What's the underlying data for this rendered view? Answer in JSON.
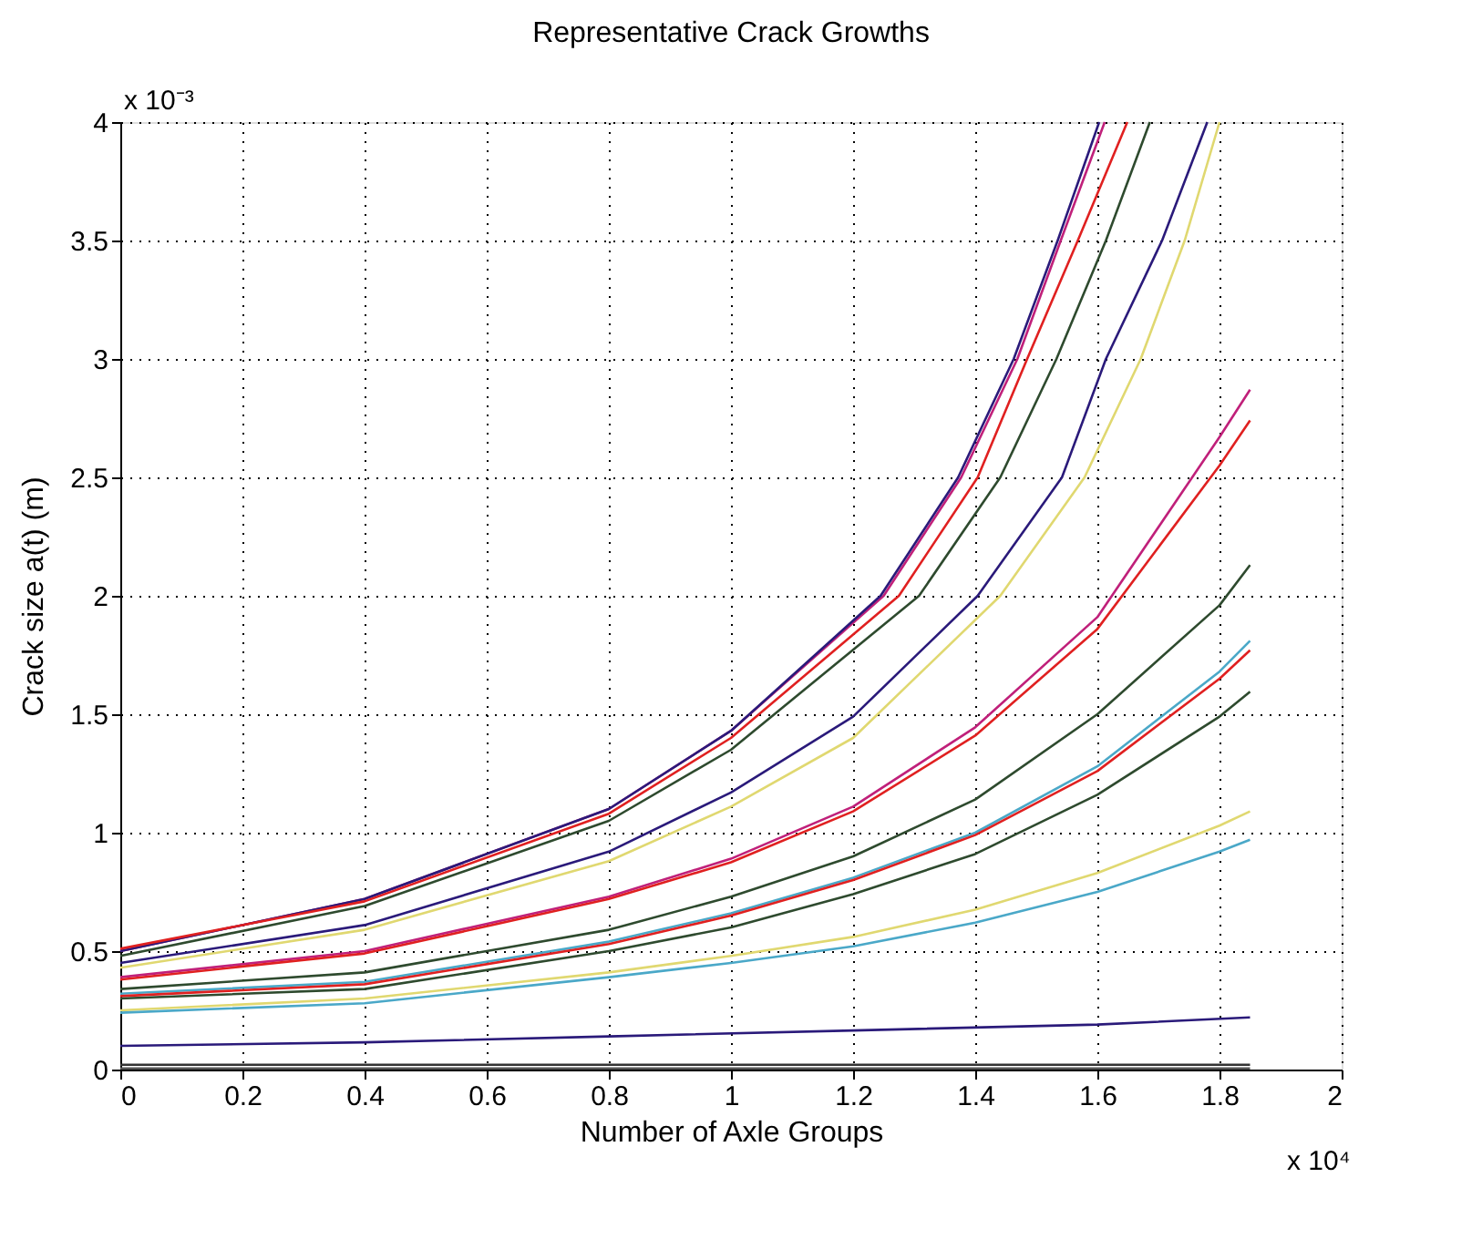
{
  "chart_data": {
    "type": "line",
    "title": "Representative Crack Growths",
    "xlabel": "Number of Axle Groups",
    "ylabel": "Crack size a(t)  (m)",
    "annotations": [
      "x 10⁻³",
      "x 10⁴"
    ],
    "xlim": [
      0,
      2
    ],
    "xticks": [
      0,
      0.2,
      0.4,
      0.6,
      0.8,
      1,
      1.2,
      1.4,
      1.6,
      1.8,
      2
    ],
    "ylim": [
      0,
      4
    ],
    "yticks": [
      0,
      0.5,
      1,
      1.5,
      2,
      2.5,
      3,
      3.5,
      4
    ],
    "grid": true,
    "legend": false,
    "marker": "none",
    "line_style": "solid",
    "series": [
      {
        "color": "#c0207a",
        "x": [
          0,
          0.4,
          0.8,
          1.0,
          1.25,
          1.377,
          1.469,
          1.54,
          1.612
        ],
        "values": [
          0.5,
          0.72,
          1.1,
          1.43,
          2.0,
          2.5,
          3.0,
          3.5,
          4.0
        ]
      },
      {
        "color": "#2a1a7a",
        "x": [
          0,
          0.4,
          0.8,
          1.0,
          1.245,
          1.372,
          1.463,
          1.535,
          1.603
        ],
        "values": [
          0.5,
          0.72,
          1.1,
          1.43,
          2.0,
          2.5,
          3.0,
          3.5,
          4.0
        ]
      },
      {
        "color": "#e02020",
        "x": [
          0,
          0.4,
          0.8,
          1.0,
          1.275,
          1.404,
          1.485,
          1.568,
          1.649
        ],
        "values": [
          0.51,
          0.71,
          1.08,
          1.4,
          2.0,
          2.5,
          3.0,
          3.5,
          4.0
        ]
      },
      {
        "color": "#2e4a2e",
        "x": [
          0,
          0.4,
          0.8,
          1.0,
          1.308,
          1.441,
          1.533,
          1.614,
          1.686
        ],
        "values": [
          0.48,
          0.69,
          1.05,
          1.35,
          2.0,
          2.5,
          3.0,
          3.5,
          4.0
        ]
      },
      {
        "color": "#2a1a7a",
        "x": [
          0,
          0.4,
          0.8,
          1.0,
          1.2,
          1.404,
          1.542,
          1.614,
          1.706,
          1.78
        ],
        "values": [
          0.45,
          0.61,
          0.92,
          1.17,
          1.49,
          2.0,
          2.5,
          3.0,
          3.5,
          4.0
        ]
      },
      {
        "color": "#e0d870",
        "x": [
          0,
          0.4,
          0.8,
          1.0,
          1.2,
          1.441,
          1.579,
          1.671,
          1.743,
          1.8
        ],
        "values": [
          0.43,
          0.59,
          0.88,
          1.11,
          1.4,
          2.0,
          2.5,
          3.0,
          3.5,
          4.0
        ]
      },
      {
        "color": "#c0207a",
        "x": [
          0,
          0.4,
          0.8,
          1.0,
          1.2,
          1.4,
          1.6,
          1.8,
          1.85
        ],
        "values": [
          0.39,
          0.5,
          0.73,
          0.89,
          1.11,
          1.445,
          1.91,
          2.67,
          2.87
        ]
      },
      {
        "color": "#e02020",
        "x": [
          0,
          0.4,
          0.8,
          1.0,
          1.2,
          1.4,
          1.6,
          1.8,
          1.85
        ],
        "values": [
          0.38,
          0.49,
          0.72,
          0.875,
          1.09,
          1.41,
          1.86,
          2.55,
          2.74
        ]
      },
      {
        "color": "#2e4a2e",
        "x": [
          0,
          0.4,
          0.8,
          1.0,
          1.2,
          1.4,
          1.6,
          1.8,
          1.85
        ],
        "values": [
          0.34,
          0.41,
          0.59,
          0.73,
          0.9,
          1.14,
          1.5,
          1.96,
          2.13
        ]
      },
      {
        "color": "#4aa8c8",
        "x": [
          0,
          0.4,
          0.8,
          1.0,
          1.2,
          1.4,
          1.6,
          1.8,
          1.85
        ],
        "values": [
          0.32,
          0.37,
          0.54,
          0.66,
          0.81,
          1.0,
          1.28,
          1.68,
          1.81
        ]
      },
      {
        "color": "#e02020",
        "x": [
          0,
          0.4,
          0.8,
          1.0,
          1.2,
          1.4,
          1.6,
          1.8,
          1.85
        ],
        "values": [
          0.31,
          0.36,
          0.53,
          0.65,
          0.8,
          0.99,
          1.26,
          1.65,
          1.77
        ]
      },
      {
        "color": "#2e4a2e",
        "x": [
          0,
          0.4,
          0.8,
          1.0,
          1.2,
          1.4,
          1.6,
          1.8,
          1.85
        ],
        "values": [
          0.3,
          0.34,
          0.5,
          0.6,
          0.74,
          0.91,
          1.16,
          1.49,
          1.595
        ]
      },
      {
        "color": "#e0d870",
        "x": [
          0,
          0.4,
          0.8,
          1.0,
          1.2,
          1.4,
          1.6,
          1.8,
          1.85
        ],
        "values": [
          0.25,
          0.3,
          0.41,
          0.48,
          0.56,
          0.675,
          0.83,
          1.03,
          1.09
        ]
      },
      {
        "color": "#4aa8c8",
        "x": [
          0,
          0.4,
          0.8,
          1.0,
          1.2,
          1.4,
          1.6,
          1.8,
          1.85
        ],
        "values": [
          0.24,
          0.28,
          0.39,
          0.45,
          0.52,
          0.62,
          0.75,
          0.92,
          0.97
        ]
      },
      {
        "color": "#2a1a7a",
        "x": [
          0,
          0.4,
          0.8,
          1.2,
          1.6,
          1.85
        ],
        "values": [
          0.1,
          0.115,
          0.14,
          0.165,
          0.19,
          0.22
        ]
      },
      {
        "color": "#333333",
        "x": [
          0,
          1.85
        ],
        "values": [
          0.02,
          0.02
        ]
      },
      {
        "color": "#555555",
        "x": [
          0,
          1.85
        ],
        "values": [
          0.005,
          0.005
        ]
      }
    ]
  }
}
